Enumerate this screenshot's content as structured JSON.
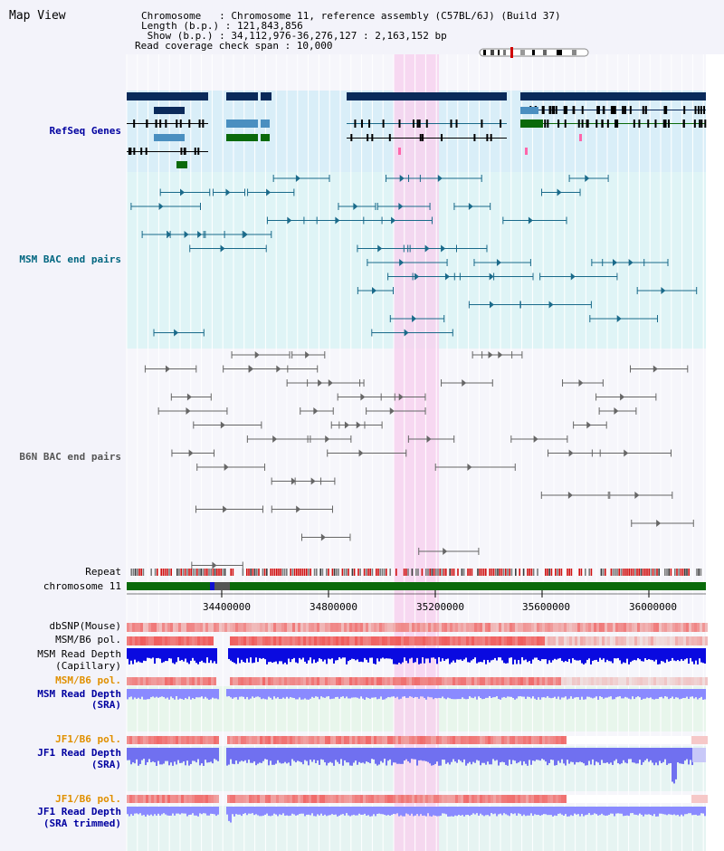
{
  "view_title": "Map View",
  "header": {
    "chromosome_line": "Chromosome   : Chromosome 11, reference assembly (C57BL/6J) (Build 37)",
    "length_line": "Length (b.p.) : 121,843,856",
    "show_line": " Show (b.p.) : 34,112,976-36,276,127 : 2,163,152 bp",
    "coverage_line": "Read coverage check span : 10,000"
  },
  "tracks": {
    "refseq": "RefSeq Genes",
    "msm_bac": "MSM BAC end pairs",
    "b6n_bac": "B6N BAC end pairs",
    "repeat": "Repeat",
    "chromosome": "chromosome 11",
    "dbsnp": "dbSNP(Mouse)",
    "msm_b6_pol": "MSM/B6 pol.",
    "msm_depth_cap_1": "MSM Read Depth",
    "msm_depth_cap_2": "(Capillary)",
    "msm_b6_pol_sra": "MSM/B6 pol.",
    "msm_depth_sra_1": "MSM Read Depth",
    "msm_depth_sra_2": "(SRA)",
    "jf1_pol_1": "JF1/B6 pol.",
    "jf1_depth_1": "JF1 Read Depth",
    "jf1_depth_1b": "(SRA)",
    "jf1_pol_2": "JF1/B6 pol.",
    "jf1_depth_2": "JF1 Read Depth",
    "jf1_depth_2b": "(SRA trimmed)"
  },
  "axis_ticks": [
    "34400000",
    "34800000",
    "35200000",
    "35600000",
    "36000000"
  ],
  "colors": {
    "highlight": "#f7d2ee",
    "refseq_band": "#d9eef8",
    "msm_band": "#dff4f6",
    "gene_dark": "#0a2a5a",
    "gene_light": "#4a8fc0",
    "gene_green": "#0a6a0a",
    "bac_msm": "#1a6a8a",
    "bac_b6n": "#666666",
    "label_blue": "#0000a0",
    "label_teal": "#006680",
    "label_orange": "#e09000",
    "chrom_green": "#0a6a0a"
  }
}
